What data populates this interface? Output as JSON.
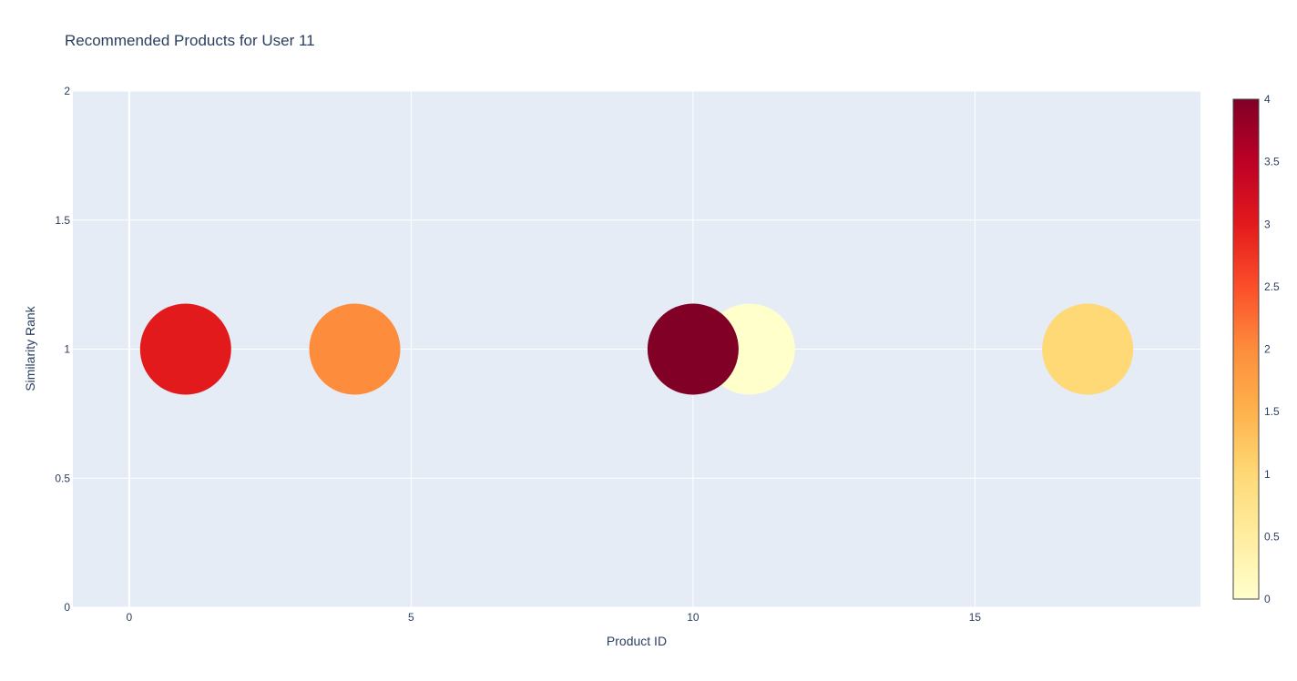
{
  "chart_data": {
    "type": "scatter",
    "title": "Recommended Products for User 11",
    "xlabel": "Product ID",
    "ylabel": "Similarity Rank",
    "xlim": [
      -1,
      19
    ],
    "ylim": [
      0,
      2
    ],
    "x_ticks": [
      0,
      5,
      10,
      15
    ],
    "y_ticks": [
      0,
      0.5,
      1,
      1.5,
      2
    ],
    "grid": true,
    "background_color": "#e5ecf6",
    "colorbar": {
      "min": 0,
      "max": 4,
      "ticks": [
        0,
        0.5,
        1,
        1.5,
        2,
        2.5,
        3,
        3.5,
        4
      ],
      "colorscale": [
        "#ffffcc",
        "#ffeda0",
        "#fed976",
        "#feb24c",
        "#fd8d3c",
        "#fc4e2a",
        "#e31a1c",
        "#bd0026",
        "#800026"
      ]
    },
    "points": [
      {
        "x": 1,
        "y": 1,
        "color_value": 3
      },
      {
        "x": 4,
        "y": 1,
        "color_value": 2
      },
      {
        "x": 11,
        "y": 1,
        "color_value": 0
      },
      {
        "x": 10,
        "y": 1,
        "color_value": 4
      },
      {
        "x": 17,
        "y": 1,
        "color_value": 1
      }
    ]
  }
}
